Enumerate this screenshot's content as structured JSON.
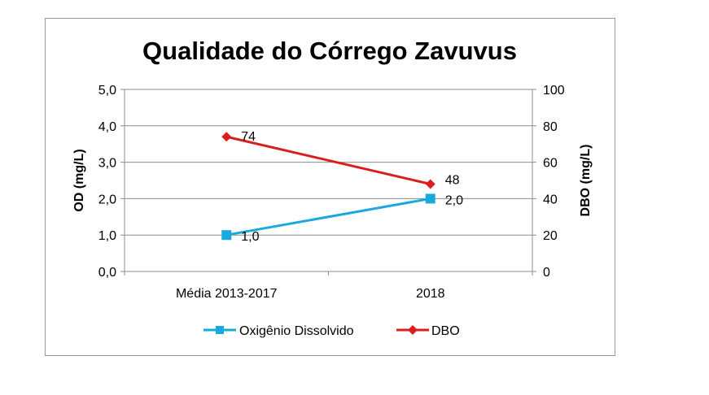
{
  "chart_data": {
    "type": "line",
    "title": "Qualidade do Córrego Zavuvus",
    "categories": [
      "Média 2013-2017",
      "2018"
    ],
    "y_left": {
      "label": "OD (mg/L)",
      "range": [
        0,
        5
      ],
      "ticks": [
        "0,0",
        "1,0",
        "2,0",
        "3,0",
        "4,0",
        "5,0"
      ]
    },
    "y_right": {
      "label": "DBO (mg/L)",
      "range": [
        0,
        100
      ],
      "ticks": [
        "0",
        "20",
        "40",
        "60",
        "80",
        "100"
      ]
    },
    "grid": true,
    "legend": "bottom",
    "series": [
      {
        "name": "Oxigênio Dissolvido",
        "axis": "left",
        "values": [
          1.0,
          2.0
        ],
        "labels": [
          "1,0",
          "2,0"
        ],
        "color": "#1aa9de",
        "marker": "square"
      },
      {
        "name": "DBO",
        "axis": "right",
        "values": [
          74,
          48
        ],
        "labels": [
          "74",
          "48"
        ],
        "color": "#d91e1e",
        "marker": "diamond"
      }
    ]
  }
}
